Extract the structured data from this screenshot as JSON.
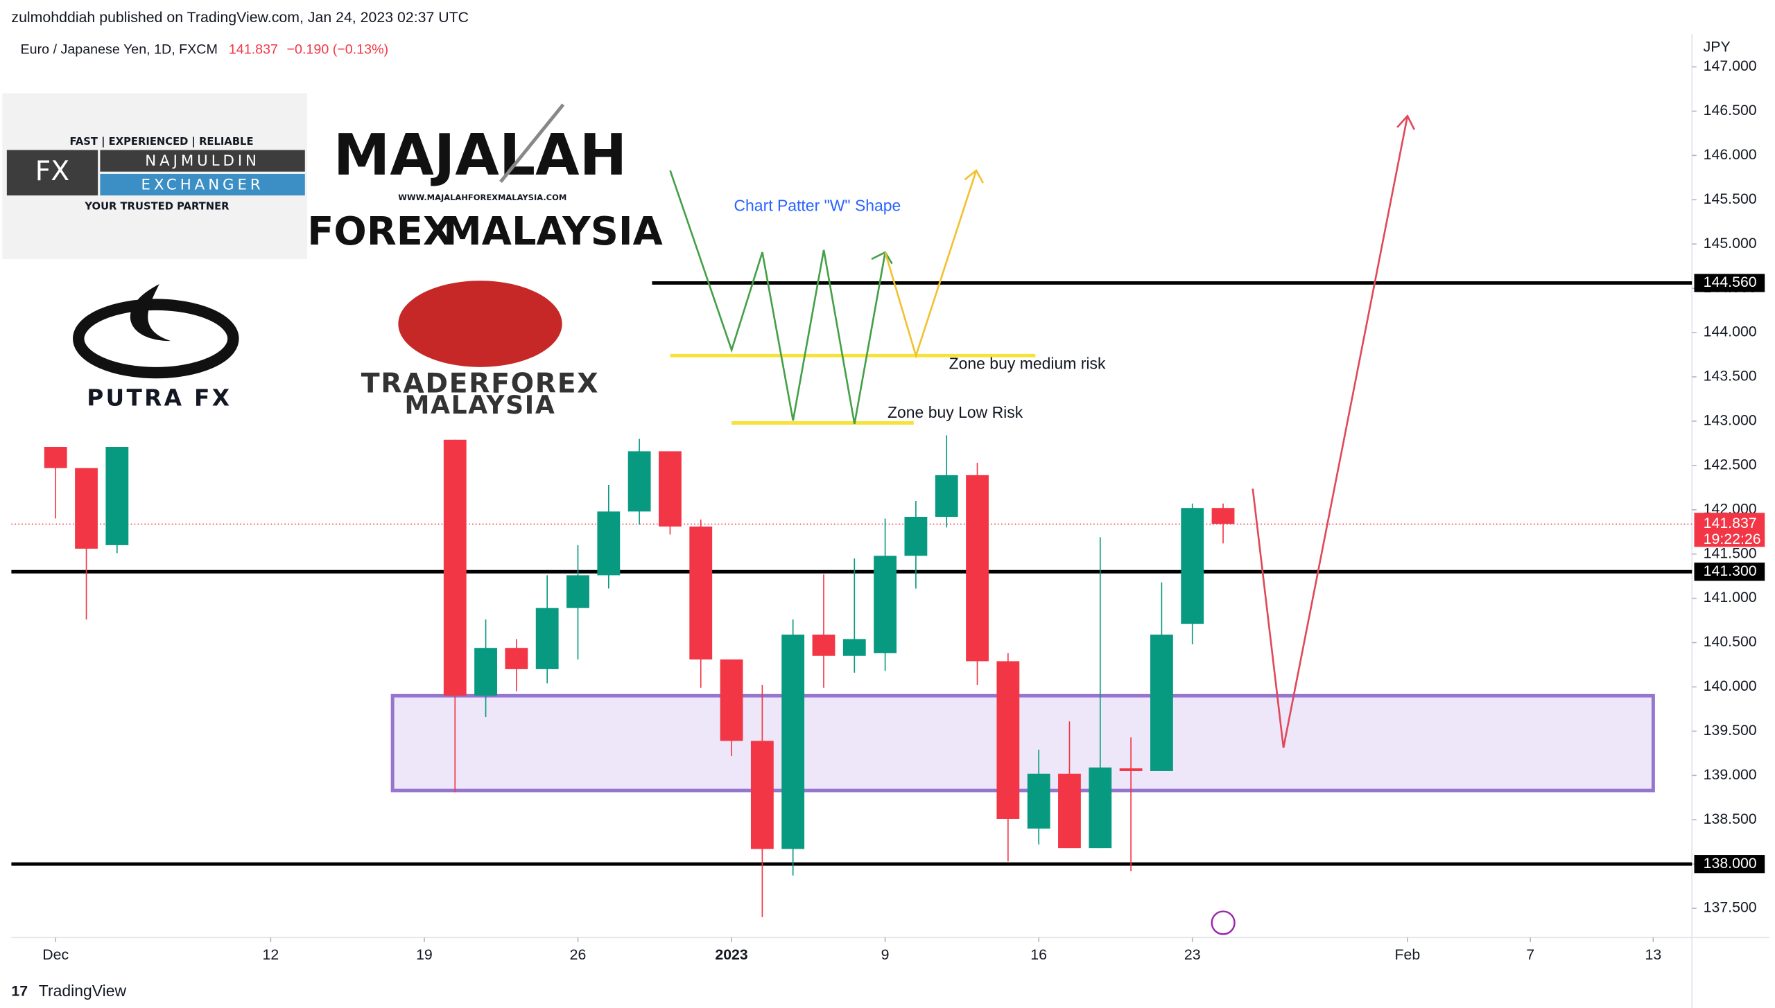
{
  "header": {
    "publisher": "zulmohddiah published on TradingView.com, Jan 24, 2023 02:37 UTC",
    "symbol": "Euro / Japanese Yen, 1D, FXCM",
    "price": "141.837",
    "change": "−0.190 (−0.13%)",
    "currency": "JPY",
    "countdown": "19:22:26"
  },
  "footer": {
    "brand": "TradingView"
  },
  "logos": {
    "najmuldin": {
      "tagline": "FAST | EXPERIENCED | RELIABLE",
      "mark": "FX",
      "name": "NAJMULDIN",
      "sub": "EXCHANGER",
      "motto": "YOUR TRUSTED PARTNER"
    },
    "majalah": {
      "title": "MAJALAH",
      "url": "WWW.MAJALAHFOREXMALAYSIA.COM",
      "left": "FOREX",
      "right": "MALAYSIA"
    },
    "putra": {
      "name": "PUTRA FX"
    },
    "trader": {
      "line1": "TRADERFOREX",
      "line2": "MALAYSIA"
    }
  },
  "chart_data": {
    "type": "candlestick",
    "up_color": "#089981",
    "down_color": "#f23645",
    "annotations": {
      "pattern": "Chart Patter \"W\" Shape",
      "medium": "Zone buy medium risk",
      "low": "Zone buy Low Risk"
    },
    "xlim": [
      -1.44,
      53.26
    ],
    "ylim": [
      137.17,
      147.37
    ],
    "xticks": [
      {
        "value": 0,
        "label": "Dec"
      },
      {
        "value": 7,
        "label": "12"
      },
      {
        "value": 12,
        "label": "19"
      },
      {
        "value": 17,
        "label": "26"
      },
      {
        "value": 22,
        "label": "2023"
      },
      {
        "value": 27,
        "label": "9"
      },
      {
        "value": 32,
        "label": "16"
      },
      {
        "value": 37,
        "label": "23"
      },
      {
        "value": 44,
        "label": "Feb"
      },
      {
        "value": 48,
        "label": "7"
      },
      {
        "value": 52,
        "label": "13"
      }
    ],
    "yticks": [
      {
        "value": 137.5,
        "label": "137.500"
      },
      {
        "value": 138,
        "label": "138.000"
      },
      {
        "value": 138.5,
        "label": "138.500"
      },
      {
        "value": 139,
        "label": "139.000"
      },
      {
        "value": 139.5,
        "label": "139.500"
      },
      {
        "value": 140,
        "label": "140.000"
      },
      {
        "value": 140.5,
        "label": "140.500"
      },
      {
        "value": 141,
        "label": "141.000"
      },
      {
        "value": 141.5,
        "label": "141.500"
      },
      {
        "value": 142,
        "label": "142.000"
      },
      {
        "value": 142.5,
        "label": "142.500"
      },
      {
        "value": 143,
        "label": "143.000"
      },
      {
        "value": 143.5,
        "label": "143.500"
      },
      {
        "value": 144,
        "label": "144.000"
      },
      {
        "value": 144.5,
        "label": "144.500"
      },
      {
        "value": 145,
        "label": "145.000"
      },
      {
        "value": 145.5,
        "label": "145.500"
      },
      {
        "value": 146,
        "label": "146.000"
      },
      {
        "value": 146.5,
        "label": "146.500"
      },
      {
        "value": 147,
        "label": "147.000"
      }
    ],
    "levels": [
      {
        "value": 144.56,
        "label": "144.560"
      },
      {
        "value": 141.3,
        "label": "141.300"
      },
      {
        "value": 138,
        "label": "138.000"
      }
    ],
    "last": 141.837,
    "zone": {
      "top": 139.9,
      "bottom": 138.83
    },
    "buy_zones": {
      "medium": 143.74,
      "low": 142.98
    },
    "candles": [
      {
        "open": 142.71,
        "high": 142.71,
        "low": 141.9,
        "close": 142.47
      },
      {
        "open": 142.47,
        "high": 142.47,
        "low": 140.76,
        "close": 141.56
      },
      {
        "open": 141.6,
        "high": 142.71,
        "low": 141.51,
        "close": 142.71
      },
      null,
      null,
      null,
      null,
      null,
      null,
      null,
      null,
      null,
      null,
      {
        "open": 142.79,
        "high": 142.79,
        "low": 138.81,
        "close": 139.9
      },
      {
        "open": 139.9,
        "high": 140.76,
        "low": 139.66,
        "close": 140.44
      },
      {
        "open": 140.44,
        "high": 140.54,
        "low": 139.95,
        "close": 140.2
      },
      {
        "open": 140.2,
        "high": 141.26,
        "low": 140.04,
        "close": 140.89
      },
      {
        "open": 140.89,
        "high": 141.6,
        "low": 140.31,
        "close": 141.26
      },
      {
        "open": 141.26,
        "high": 142.28,
        "low": 141.11,
        "close": 141.98
      },
      {
        "open": 141.98,
        "high": 142.8,
        "low": 141.83,
        "close": 142.66
      },
      {
        "open": 142.66,
        "high": 142.66,
        "low": 141.72,
        "close": 141.81
      },
      {
        "open": 141.81,
        "high": 141.89,
        "low": 139.99,
        "close": 140.31
      },
      {
        "open": 140.31,
        "high": 140.31,
        "low": 139.22,
        "close": 139.39
      },
      {
        "open": 139.39,
        "high": 140.02,
        "low": 137.4,
        "close": 138.17
      },
      {
        "open": 138.17,
        "high": 140.76,
        "low": 137.87,
        "close": 140.59
      },
      {
        "open": 140.59,
        "high": 141.27,
        "low": 139.99,
        "close": 140.35
      },
      {
        "open": 140.35,
        "high": 141.45,
        "low": 140.16,
        "close": 140.54
      },
      {
        "open": 140.38,
        "high": 141.9,
        "low": 140.18,
        "close": 141.48
      },
      {
        "open": 141.48,
        "high": 142.1,
        "low": 141.11,
        "close": 141.92
      },
      {
        "open": 141.92,
        "high": 142.84,
        "low": 141.8,
        "close": 142.39
      },
      {
        "open": 142.39,
        "high": 142.53,
        "low": 140.02,
        "close": 140.29
      },
      {
        "open": 140.29,
        "high": 140.38,
        "low": 138.03,
        "close": 138.51
      },
      {
        "open": 138.4,
        "high": 139.29,
        "low": 138.22,
        "close": 139.02
      },
      {
        "open": 139.02,
        "high": 139.61,
        "low": 138.18,
        "close": 138.18
      },
      {
        "open": 138.18,
        "high": 141.69,
        "low": 138.18,
        "close": 139.09
      },
      {
        "open": 139.08,
        "high": 139.43,
        "low": 137.92,
        "close": 139.05
      },
      {
        "open": 139.05,
        "high": 141.18,
        "low": 139.05,
        "close": 140.59
      },
      {
        "open": 140.71,
        "high": 142.07,
        "low": 140.48,
        "close": 142.02
      },
      {
        "open": 142.02,
        "high": 142.07,
        "low": 141.62,
        "close": 141.84
      }
    ]
  }
}
